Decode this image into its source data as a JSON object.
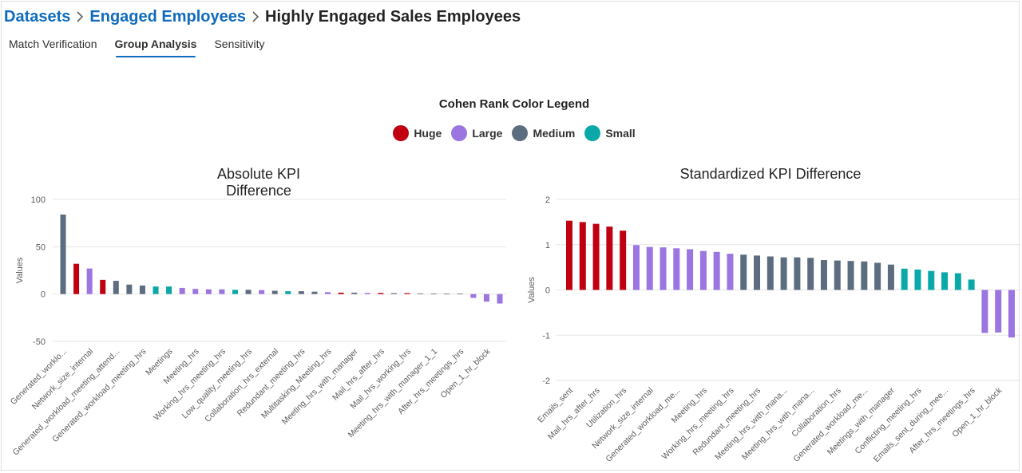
{
  "breadcrumb": {
    "items": [
      "Datasets",
      "Engaged Employees",
      "Highly Engaged Sales Employees"
    ]
  },
  "tabs": [
    {
      "label": "Match Verification",
      "active": false
    },
    {
      "label": "Group Analysis",
      "active": true
    },
    {
      "label": "Sensitivity",
      "active": false
    }
  ],
  "legend": {
    "title": "Cohen Rank Color Legend",
    "items": [
      {
        "label": "Huge",
        "color": "#c00010"
      },
      {
        "label": "Large",
        "color": "#9b75e0"
      },
      {
        "label": "Medium",
        "color": "#5d6d80"
      },
      {
        "label": "Small",
        "color": "#0aa8a8"
      }
    ]
  },
  "chart_data": [
    {
      "type": "bar",
      "title": "Absolute KPI Difference",
      "ylabel": "Values",
      "ylim": [
        -50,
        100
      ],
      "yticks": [
        -50,
        0,
        50,
        100
      ],
      "values": [
        84,
        32,
        27,
        15,
        14,
        10,
        9,
        8,
        8,
        6.5,
        5.5,
        5,
        5,
        4.5,
        4.5,
        4.2,
        3.5,
        3,
        3,
        2.5,
        2,
        1.5,
        1.5,
        1.2,
        1.2,
        1,
        1,
        0.7,
        0.5,
        0.5,
        0.5,
        -4,
        -8,
        -10
      ],
      "groups": [
        "Medium",
        "Huge",
        "Large",
        "Huge",
        "Medium",
        "Medium",
        "Medium",
        "Small",
        "Small",
        "Large",
        "Large",
        "Large",
        "Large",
        "Small",
        "Medium",
        "Large",
        "Medium",
        "Small",
        "Medium",
        "Medium",
        "Large",
        "Huge",
        "Medium",
        "Large",
        "Huge",
        "Medium",
        "Huge",
        "Medium",
        "Medium",
        "Medium",
        "Medium",
        "Large",
        "Large",
        "Large"
      ],
      "tick_labels": [
        "Generated_worklo...",
        "Network_size_internal",
        "Generated_workload_meeting_attend...",
        "Generated_workload_meeting_hrs",
        "Meetings",
        "Meeting_hrs",
        "Working_hrs_meeting_hrs",
        "Low_quality_meeting_hrs",
        "Collaboration_hrs_external",
        "Redundant_meeting_hrs",
        "Multitasking_Meeting_hrs",
        "Meeting_hrs_with_manager",
        "Mail_hrs_after_hrs",
        "Mail_hrs_working_hrs",
        "Meeting_hrs_with_manager_1_1",
        "After_hrs_meetings_hrs",
        "Open_1_hr_block"
      ],
      "tick_label_bar_index": [
        0,
        2,
        4,
        6,
        8,
        10,
        12,
        14,
        16,
        18,
        20,
        22,
        24,
        26,
        28,
        30,
        32
      ]
    },
    {
      "type": "bar",
      "title": "Standardized KPI Difference",
      "ylabel": "Values",
      "ylim": [
        -2,
        2
      ],
      "yticks": [
        -2,
        -1,
        0,
        1,
        2
      ],
      "values": [
        1.53,
        1.5,
        1.46,
        1.4,
        1.31,
        0.99,
        0.95,
        0.94,
        0.92,
        0.9,
        0.86,
        0.84,
        0.8,
        0.78,
        0.76,
        0.74,
        0.72,
        0.72,
        0.71,
        0.66,
        0.65,
        0.64,
        0.63,
        0.6,
        0.56,
        0.47,
        0.45,
        0.42,
        0.39,
        0.37,
        0.23,
        -0.95,
        -0.94,
        -1.05
      ],
      "groups": [
        "Huge",
        "Huge",
        "Huge",
        "Huge",
        "Huge",
        "Large",
        "Large",
        "Large",
        "Large",
        "Large",
        "Large",
        "Large",
        "Large",
        "Medium",
        "Medium",
        "Medium",
        "Medium",
        "Medium",
        "Medium",
        "Medium",
        "Medium",
        "Medium",
        "Medium",
        "Medium",
        "Medium",
        "Small",
        "Small",
        "Small",
        "Small",
        "Small",
        "Small",
        "Large",
        "Large",
        "Large"
      ],
      "tick_labels": [
        "Emails_sent",
        "Mail_hrs_after_hrs",
        "Utilization_hrs",
        "Network_size_internal",
        "Generated_workload_me...",
        "Meeting_hrs",
        "Working_hrs_meeting_hrs",
        "Redundant_meeting_hrs",
        "Meeting_hrs_with_mana...",
        "Meeting_hrs_with_mana...",
        "Collaboration_hrs",
        "Generated_workload_me...",
        "Meetings_with_manager",
        "Conflicting_meeting_hrs",
        "Emails_sent_during_mee...",
        "After_hrs_meetings_hrs",
        "Open_1_hr_block"
      ],
      "tick_label_bar_index": [
        0,
        2,
        4,
        6,
        8,
        10,
        12,
        14,
        16,
        18,
        20,
        22,
        24,
        26,
        28,
        30,
        32
      ]
    }
  ]
}
